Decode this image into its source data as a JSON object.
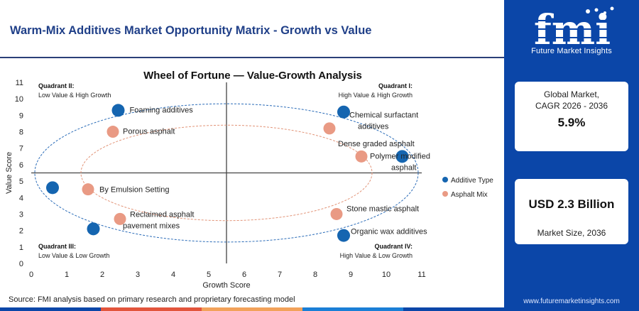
{
  "header": {
    "title": "Warm-Mix Additives Market Opportunity Matrix - Growth vs Value"
  },
  "brand": {
    "logo_text": "fmi",
    "tagline": "Future Market Insights",
    "website": "www.futuremarketinsights.com",
    "color": "#0b46a8"
  },
  "stats": [
    {
      "label_line1": "Global Market,",
      "label_line2": "CAGR 2026 - 2036",
      "value": "5.9%"
    },
    {
      "label": "Market Size, 2036",
      "value": "USD 2.3 Billion"
    }
  ],
  "source": "Source: FMI analysis based on primary research and proprietary forecasting model",
  "footer_colors": [
    "#0b46a8",
    "#e2553c",
    "#f2a25a",
    "#1a7fd6",
    "#0b46a8"
  ],
  "chart_data": {
    "type": "scatter",
    "title": "Wheel of Fortune — Value-Growth Analysis",
    "xlabel": "Growth Score",
    "ylabel": "Value Score",
    "xlim": [
      0,
      11
    ],
    "ylim": [
      0,
      11
    ],
    "xticks": [
      "0",
      "1",
      "2",
      "3",
      "4",
      "5",
      "6",
      "7",
      "8",
      "9",
      "10",
      "11"
    ],
    "yticks": [
      "0",
      "1",
      "2",
      "3",
      "4",
      "5",
      "6",
      "7",
      "8",
      "9",
      "10",
      "11"
    ],
    "divider": {
      "x": 5.5,
      "y": 5.5
    },
    "quadrants": [
      {
        "title": "Quadrant II:",
        "subtitle": "Low Value & High Growth"
      },
      {
        "title": "Quadrant I:",
        "subtitle": "High Value & High Growth"
      },
      {
        "title": "Quadrant III:",
        "subtitle": "Low Value & Low Growth"
      },
      {
        "title": "Quadrant IV:",
        "subtitle": "High Value & Low Growth"
      }
    ],
    "legend": "right",
    "series": [
      {
        "name": "Additive Type",
        "color": "#1565b0",
        "points": [
          {
            "label": "Foaming additives",
            "x": 2.45,
            "y": 9.3
          },
          {
            "label": "Chemical surfactant additives",
            "x": 8.8,
            "y": 9.2
          },
          {
            "label": "",
            "x": 10.45,
            "y": 6.5
          },
          {
            "label": "",
            "x": 0.6,
            "y": 4.6
          },
          {
            "label": "",
            "x": 1.75,
            "y": 2.1
          },
          {
            "label": "Organic wax additives",
            "x": 8.8,
            "y": 1.7
          }
        ]
      },
      {
        "name": "Asphalt Mix",
        "color": "#e99a84",
        "points": [
          {
            "label": "Porous asphalt",
            "x": 2.3,
            "y": 8.0
          },
          {
            "label": "Dense graded asphalt",
            "x": 8.4,
            "y": 8.2
          },
          {
            "label": "Polymer modified asphalt",
            "x": 9.3,
            "y": 6.5
          },
          {
            "label": "By Emulsion Setting",
            "x": 1.6,
            "y": 4.5
          },
          {
            "label": "Reclaimed asphalt pavement mixes",
            "x": 2.5,
            "y": 2.7
          },
          {
            "label": "Stone mastic asphalt",
            "x": 8.6,
            "y": 3.0
          }
        ]
      }
    ]
  }
}
